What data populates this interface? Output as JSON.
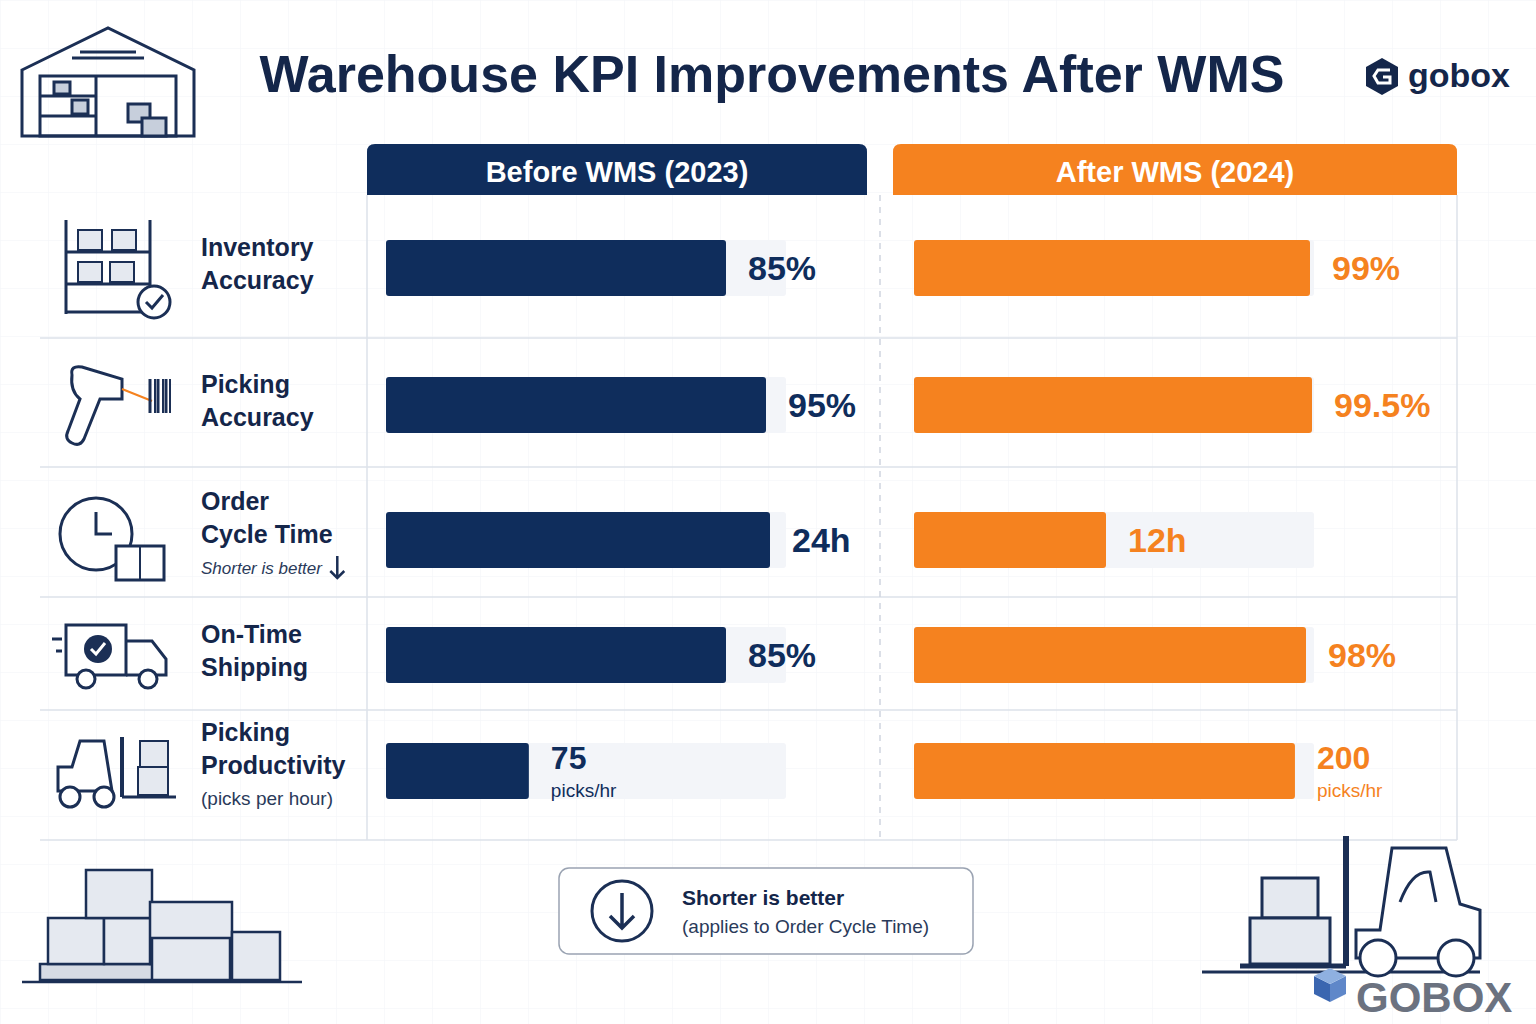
{
  "header": {
    "title": "Warehouse KPI Improvements After WMS",
    "logo": "gobox",
    "watermark": "GOBOX"
  },
  "columns": [
    {
      "label": "Before WMS (2023)",
      "color": "#0f2d5c"
    },
    {
      "label": "After WMS (2024)",
      "color": "#f5821f"
    }
  ],
  "chart_data": [
    {
      "type": "bar",
      "orientation": "horizontal",
      "title": "Inventory Accuracy",
      "values": [
        85,
        99
      ],
      "value_labels": [
        "85%",
        "99%"
      ],
      "colors": [
        "#0f2d5c",
        "#f5821f"
      ],
      "xlim": [
        0,
        100
      ],
      "data_labels": true,
      "tick_labels": false
    },
    {
      "type": "bar",
      "orientation": "horizontal",
      "title": "Picking Accuracy",
      "values": [
        95,
        99.5
      ],
      "value_labels": [
        "95%",
        "99.5%"
      ],
      "colors": [
        "#0f2d5c",
        "#f5821f"
      ],
      "xlim": [
        0,
        100
      ],
      "data_labels": true,
      "tick_labels": false
    },
    {
      "type": "bar",
      "orientation": "horizontal",
      "title": "Order Cycle Time",
      "subtitle": "Shorter is better",
      "values": [
        24,
        12
      ],
      "value_labels": [
        "24h",
        "12h"
      ],
      "colors": [
        "#0f2d5c",
        "#f5821f"
      ],
      "xlim": [
        0,
        25
      ],
      "data_labels": true,
      "tick_labels": false
    },
    {
      "type": "bar",
      "orientation": "horizontal",
      "title": "On-Time Shipping",
      "values": [
        85,
        98
      ],
      "value_labels": [
        "85%",
        "98%"
      ],
      "colors": [
        "#0f2d5c",
        "#f5821f"
      ],
      "xlim": [
        0,
        100
      ],
      "data_labels": true,
      "tick_labels": false
    },
    {
      "type": "bar",
      "orientation": "horizontal",
      "title": "Picking Productivity",
      "subtitle": "(picks per hour)",
      "values": [
        75,
        200
      ],
      "value_labels": [
        "75\npicks/hr",
        "200\npicks/hr"
      ],
      "colors": [
        "#0f2d5c",
        "#f5821f"
      ],
      "xlim": [
        0,
        210
      ],
      "data_labels": true,
      "tick_labels": false
    }
  ],
  "note": {
    "title": "Shorter is better",
    "text": "(applies to Order Cycle Time)"
  }
}
